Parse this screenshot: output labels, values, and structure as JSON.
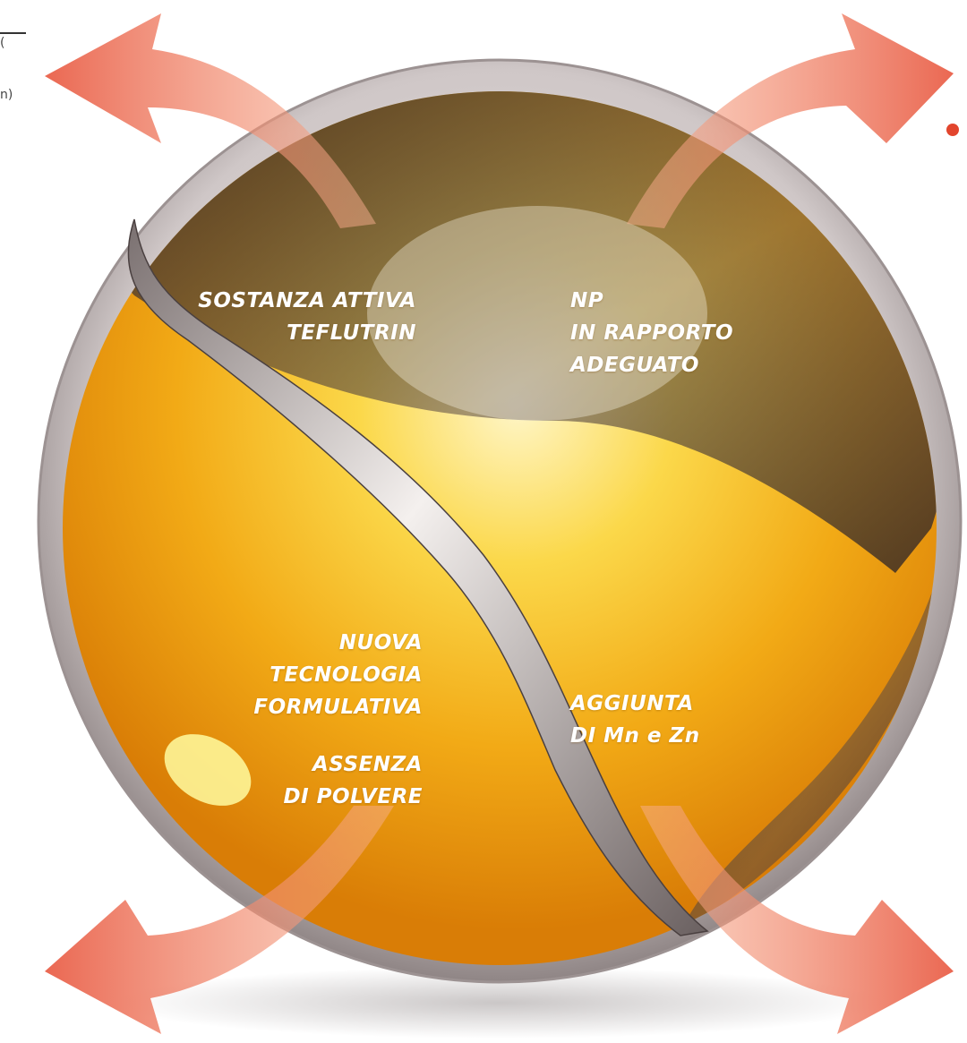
{
  "left_edge_fragments": [
    "(",
    "n)"
  ],
  "labels": {
    "top_left": [
      "SOSTANZA ATTIVA",
      "TEFLUTRIN"
    ],
    "top_right": [
      "NP",
      "IN RAPPORTO",
      "ADEGUATO"
    ],
    "bottom_left_a": [
      "NUOVA",
      "TECNOLOGIA",
      "FORMULATIVA"
    ],
    "bottom_left_b": [
      "ASSENZA",
      "DI POLVERE"
    ],
    "bottom_right": [
      "AGGIUNTA",
      "DI Mn e Zn"
    ]
  },
  "colors": {
    "arrow": "#e8573f",
    "arrow_light": "#f8b090",
    "core_center": "#fff6c8",
    "core_mid": "#f7c21a",
    "core_edge": "#d97d06",
    "glass": "#b8b0b0",
    "shadow_band": "#3c3030",
    "accent_dot": "#e2452d"
  }
}
